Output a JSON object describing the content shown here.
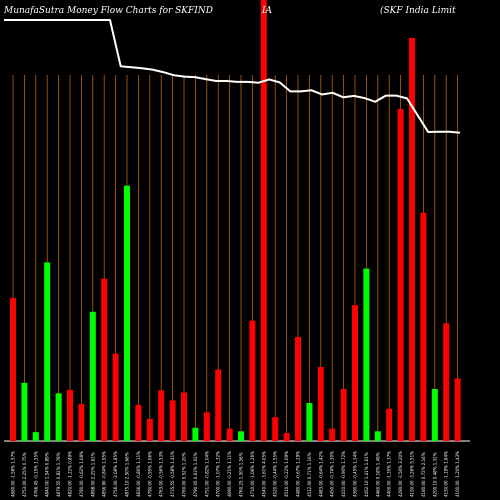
{
  "chart_data": {
    "type": "bar",
    "title_parts": [
      "MunafaSutra  Money Flow  Charts for SKFIND",
      "IA",
      "(SKF India  Limit"
    ],
    "y_max": 100,
    "line_min": 0,
    "line_max": 100,
    "colors": {
      "background": "#000000",
      "up": "#00ff00",
      "down": "#ff0000",
      "grid": "#b8620c",
      "line": "#ffffff"
    },
    "bars": [
      {
        "label": "4680.00 -1.58% 1.57%",
        "value": 32.4,
        "dir": "down"
      },
      {
        "label": "4753.00 2.25% 0.75%",
        "value": 13.2,
        "dir": "up"
      },
      {
        "label": "4766.45 -0.15% 1.55%",
        "value": 2.0,
        "dir": "up"
      },
      {
        "label": "4840.00 1.54% 0.89%",
        "value": 40.5,
        "dir": "up"
      },
      {
        "label": "4879.55 0.82% 1.78%",
        "value": 10.8,
        "dir": "up"
      },
      {
        "label": "4820.00 -1.22% 0.89%",
        "value": 11.6,
        "dir": "down"
      },
      {
        "label": "4790.00 -0.62% 1.08%",
        "value": 8.4,
        "dir": "down"
      },
      {
        "label": "4898.00 2.25% 1.62%",
        "value": 29.3,
        "dir": "up"
      },
      {
        "label": "4856.90 -0.84% 1.95%",
        "value": 36.8,
        "dir": "down"
      },
      {
        "label": "4756.00 -2.08% 1.85%",
        "value": 19.8,
        "dir": "down"
      },
      {
        "label": "4875.10 2.50% 1.66%",
        "value": 57.9,
        "dir": "up"
      },
      {
        "label": "4836.00 -0.80% 1.11%",
        "value": 8.2,
        "dir": "down"
      },
      {
        "label": "4790.00 -0.95% 1.06%",
        "value": 5.0,
        "dir": "down"
      },
      {
        "label": "4763.00 -0.56% 1.53%",
        "value": 11.5,
        "dir": "down"
      },
      {
        "label": "4735.55 -0.58% 1.41%",
        "value": 9.2,
        "dir": "down"
      },
      {
        "label": "4760.00 0.52% 1.20%",
        "value": 11.0,
        "dir": "down"
      },
      {
        "label": "4790.05 0.63% 1.02%",
        "value": 3.0,
        "dir": "up"
      },
      {
        "label": "4751.00 -0.82% 1.04%",
        "value": 6.5,
        "dir": "down"
      },
      {
        "label": "4700.00 -1.07% 1.32%",
        "value": 16.2,
        "dir": "down"
      },
      {
        "label": "4690.00 -0.21% 1.11%",
        "value": 2.8,
        "dir": "down"
      },
      {
        "label": "4760.25 1.50% 1.56%",
        "value": 2.2,
        "dir": "up"
      },
      {
        "label": "4710.00 -1.06% 1.26%",
        "value": 27.3,
        "dir": "down"
      },
      {
        "label": "4540.00 -3.61% 4.05%",
        "value": 100,
        "dir": "down"
      },
      {
        "label": "4520.00 -0.44% 1.55%",
        "value": 5.4,
        "dir": "down"
      },
      {
        "label": "4510.00 -0.22% 1.09%",
        "value": 1.8,
        "dir": "down"
      },
      {
        "label": "4480.00 -0.67% 1.29%",
        "value": 23.6,
        "dir": "down"
      },
      {
        "label": "4512.00 0.71% 1.16%",
        "value": 8.6,
        "dir": "up"
      },
      {
        "label": "4483.00 -0.64% 1.42%",
        "value": 16.8,
        "dir": "down"
      },
      {
        "label": "4450.00 -0.74% 1.30%",
        "value": 2.8,
        "dir": "down"
      },
      {
        "label": "4410.00 -0.90% 1.72%",
        "value": 11.8,
        "dir": "down"
      },
      {
        "label": "4390.00 -0.45% 1.34%",
        "value": 30.8,
        "dir": "down"
      },
      {
        "label": "4452.10 1.41% 1.61%",
        "value": 39.1,
        "dir": "up"
      },
      {
        "label": "4460.00 0.18% 1.49%",
        "value": 2.2,
        "dir": "up"
      },
      {
        "label": "4400.00 -1.35% 1.37%",
        "value": 7.3,
        "dir": "down"
      },
      {
        "label": "4290.00 -2.50% 3.20%",
        "value": 75.3,
        "dir": "down"
      },
      {
        "label": "4150.00 -3.26% 5.51%",
        "value": 91.4,
        "dir": "down"
      },
      {
        "label": "4180.00 0.72% 2.16%",
        "value": 51.8,
        "dir": "down"
      },
      {
        "label": "4200.10 0.48% 1.32%",
        "value": 11.8,
        "dir": "up"
      },
      {
        "label": "4150.00 -1.19% 1.84%",
        "value": 26.7,
        "dir": "down"
      },
      {
        "label": "4100.00 -1.20% 1.43%",
        "value": 14.2,
        "dir": "down"
      }
    ],
    "line_values": [
      100,
      100,
      100,
      100,
      100,
      100,
      100,
      100,
      100,
      100,
      100,
      83.5,
      83.1,
      82.8,
      82.3,
      81.4,
      80.3,
      79.8,
      79.6,
      78.9,
      78.2,
      78.2,
      77.9,
      77.9,
      77.6,
      78.8,
      77.7,
      74.5,
      74.5,
      74.9,
      73.4,
      74.0,
      72.4,
      72.9,
      72.1,
      70.8,
      73.0,
      73.0,
      72.0,
      66.0,
      60.0,
      60.1,
      60.1,
      59.7
    ]
  }
}
